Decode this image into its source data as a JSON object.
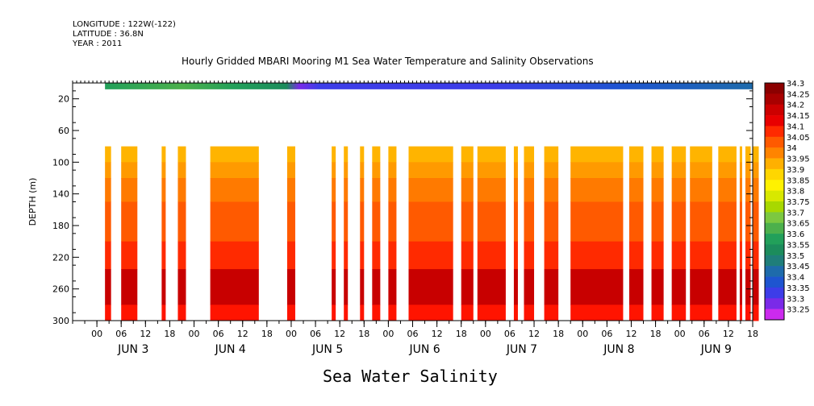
{
  "header": {
    "longitude": "LONGITUDE : 122W(-122)",
    "latitude": "LATITUDE : 36.8N",
    "year": "YEAR : 2011",
    "title": "Hourly Gridded MBARI Mooring M1 Sea Water Temperature and Salinity Observations"
  },
  "chart_data": {
    "type": "heatmap",
    "title": "Hourly Gridded MBARI Mooring M1 Sea Water Temperature and Salinity Observations",
    "variable": "Sea Water Salinity",
    "ylabel": "DEPTH (m)",
    "ylim": [
      300,
      0
    ],
    "y_ticks": [
      20,
      60,
      100,
      140,
      180,
      220,
      260,
      300
    ],
    "x_range_hours": [
      -6,
      162
    ],
    "x_tick_labels": [
      "00",
      "06",
      "12",
      "18",
      "00",
      "06",
      "12",
      "18",
      "00",
      "06",
      "12",
      "18",
      "00",
      "06",
      "12",
      "18",
      "00",
      "06",
      "12",
      "18",
      "00",
      "06",
      "12",
      "18",
      "00",
      "06",
      "12",
      "18"
    ],
    "x_tick_hours": [
      0,
      6,
      12,
      18,
      24,
      30,
      36,
      42,
      48,
      54,
      60,
      66,
      72,
      78,
      84,
      90,
      96,
      102,
      108,
      114,
      120,
      126,
      132,
      138,
      144,
      150,
      156,
      162
    ],
    "day_labels": [
      "JUN  3",
      "JUN  4",
      "JUN  5",
      "JUN  6",
      "JUN  7",
      "JUN  8",
      "JUN  9"
    ],
    "day_label_hours": [
      9,
      33,
      57,
      81,
      105,
      129,
      153
    ],
    "colorbar": {
      "levels": [
        "34.3",
        "34.25",
        "34.2",
        "34.15",
        "34.1",
        "34.05",
        "34",
        "33.95",
        "33.9",
        "33.85",
        "33.8",
        "33.75",
        "33.7",
        "33.65",
        "33.6",
        "33.55",
        "33.5",
        "33.45",
        "33.4",
        "33.35",
        "33.3",
        "33.25"
      ],
      "colors": [
        "#8b0000",
        "#a80000",
        "#cc0000",
        "#e80000",
        "#ff2a00",
        "#ff5a00",
        "#ff8400",
        "#ffb000",
        "#ffd600",
        "#fff200",
        "#d8e800",
        "#a8d800",
        "#7cc840",
        "#4cb04c",
        "#22a05a",
        "#1c8c5c",
        "#1f7e7a",
        "#1e6bab",
        "#1e55d0",
        "#3d3de8",
        "#7a2ae8",
        "#cc2aee"
      ]
    },
    "surface_row_depth_m": [
      0,
      8
    ],
    "data_depth_range_m": [
      80,
      300
    ],
    "bands": [
      {
        "depth": [
          80,
          100
        ],
        "color": "#ffb400"
      },
      {
        "depth": [
          100,
          120
        ],
        "color": "#ff9a00"
      },
      {
        "depth": [
          120,
          150
        ],
        "color": "#ff7a00"
      },
      {
        "depth": [
          150,
          200
        ],
        "color": "#ff5a00"
      },
      {
        "depth": [
          200,
          235
        ],
        "color": "#ff2a00"
      },
      {
        "depth": [
          235,
          280
        ],
        "color": "#c80000"
      },
      {
        "depth": [
          280,
          300
        ],
        "color": "#ff1400"
      }
    ],
    "data_columns_hours": [
      [
        2,
        3.5
      ],
      [
        6,
        10
      ],
      [
        16,
        17
      ],
      [
        20,
        22
      ],
      [
        28,
        40
      ],
      [
        47,
        49
      ],
      [
        58,
        59
      ],
      [
        61,
        62
      ],
      [
        65,
        66
      ],
      [
        68,
        70
      ],
      [
        72,
        74
      ],
      [
        77,
        88
      ],
      [
        90,
        93
      ],
      [
        94,
        101
      ],
      [
        103,
        104
      ],
      [
        105.5,
        108
      ],
      [
        110.5,
        114
      ],
      [
        117,
        130
      ],
      [
        131.5,
        135
      ],
      [
        137,
        140
      ],
      [
        142,
        145.5
      ],
      [
        146.5,
        152
      ],
      [
        153.5,
        158
      ],
      [
        158.8,
        159.4
      ],
      [
        160.2,
        161.5
      ],
      [
        162,
        163.5
      ]
    ]
  },
  "footer": {
    "label": "Sea Water Salinity"
  }
}
